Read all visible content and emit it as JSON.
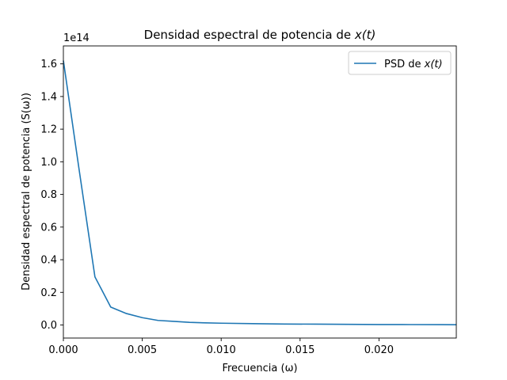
{
  "chart_data": {
    "type": "line",
    "title_prefix": "Densidad espectral de potencia de ",
    "title_math": "x(t)",
    "xlabel": "Frecuencia (ω)",
    "ylabel": "Densidad espectral de potencia (S(ω))",
    "y_offset_label": "1e14",
    "xlim": [
      0,
      0.0249
    ],
    "ylim": [
      -0.08,
      1.71
    ],
    "y_scale_factor": 100000000000000.0,
    "x_ticks": [
      0.0,
      0.005,
      0.01,
      0.015,
      0.02
    ],
    "x_tick_labels": [
      "0.000",
      "0.005",
      "0.010",
      "0.015",
      "0.020"
    ],
    "y_ticks": [
      0.0,
      0.2,
      0.4,
      0.6,
      0.8,
      1.0,
      1.2,
      1.4,
      1.6
    ],
    "y_tick_labels": [
      "0.0",
      "0.2",
      "0.4",
      "0.6",
      "0.8",
      "1.0",
      "1.2",
      "1.4",
      "1.6"
    ],
    "grid": false,
    "legend_placement": "top-right",
    "series": [
      {
        "name": "PSD de x(t)",
        "color": "#1f77b4",
        "x": [
          0.0,
          0.001,
          0.002,
          0.003,
          0.004,
          0.005,
          0.006,
          0.007,
          0.008,
          0.009,
          0.01,
          0.012,
          0.014,
          0.016,
          0.018,
          0.02,
          0.022,
          0.024,
          0.0249
        ],
        "y": [
          1.62,
          0.95,
          0.295,
          0.11,
          0.07,
          0.045,
          0.028,
          0.022,
          0.016,
          0.013,
          0.011,
          0.008,
          0.006,
          0.005,
          0.004,
          0.003,
          0.0025,
          0.002,
          0.0018
        ]
      }
    ]
  },
  "legend": {
    "label_prefix": "PSD de ",
    "label_math": "x(t)"
  }
}
